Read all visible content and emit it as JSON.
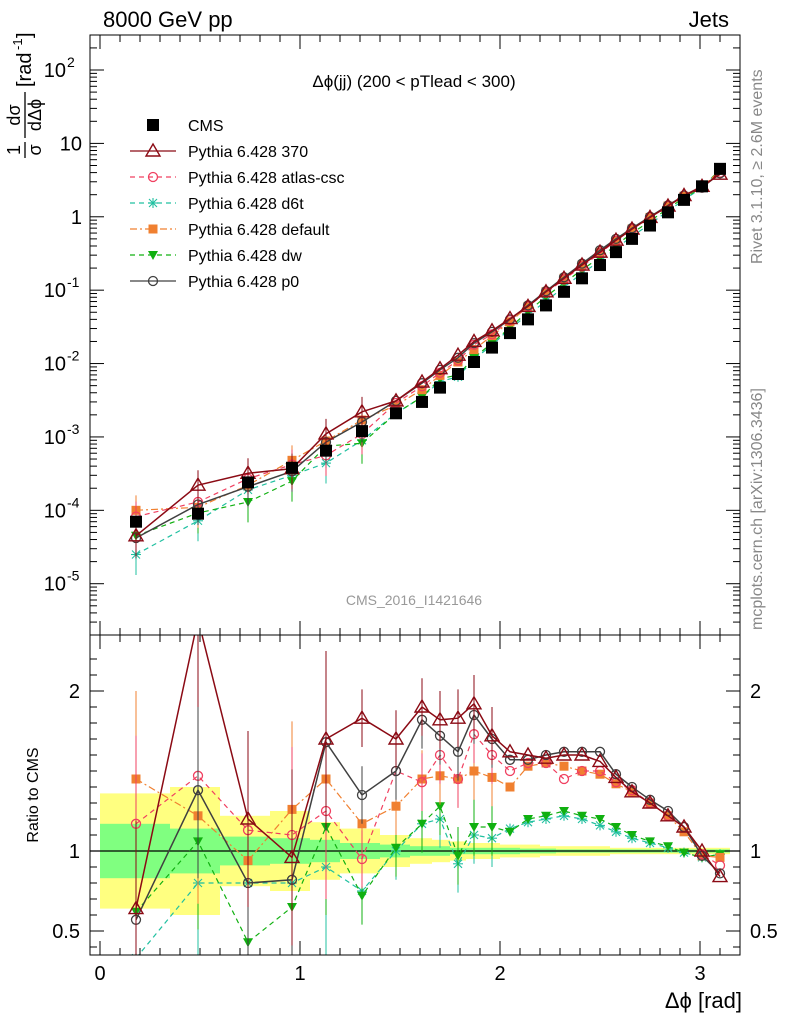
{
  "header": {
    "left": "8000 GeV pp",
    "right": "Jets"
  },
  "side_labels": {
    "top": "Rivet 3.1.10, ≥ 2.6M events",
    "bottom": "mcplots.cern.ch [arXiv:1306.3436]"
  },
  "watermark": "CMS_2016_I1421646",
  "colors": {
    "CMS": "#000000",
    "p370": "#8b0a14",
    "atlas": "#f04060",
    "d6t": "#20c0a0",
    "default": "#f08030",
    "dw": "#10b010",
    "p0": "#404040",
    "band_syst": "#ffff80",
    "band_stat": "#80ff80"
  },
  "chart_data": [
    {
      "type": "line",
      "title": "Δϕ(jj) (200 < pTlead <  300)",
      "ylabel": "1/σ dσ/dΔϕ [rad⁻¹]",
      "ylabel_parts": {
        "frac_num": "1",
        "frac_den": "σ",
        "num": "dσ",
        "den": "dΔϕ",
        "unit": "[rad",
        "unit_exp": "-1",
        "unit_close": "]"
      },
      "yscale": "log",
      "ylim": [
        2e-06,
        300
      ],
      "xlim": [
        -0.05,
        3.2
      ],
      "y_ticks": [
        {
          "v": 1e-05,
          "base": "10",
          "exp": "-5"
        },
        {
          "v": 0.0001,
          "base": "10",
          "exp": "-4"
        },
        {
          "v": 0.001,
          "base": "10",
          "exp": "-3"
        },
        {
          "v": 0.01,
          "base": "10",
          "exp": "-2"
        },
        {
          "v": 0.1,
          "base": "10",
          "exp": "-1"
        },
        {
          "v": 1,
          "base": "1",
          "exp": ""
        },
        {
          "v": 10,
          "base": "10",
          "exp": ""
        },
        {
          "v": 100,
          "base": "10",
          "exp": "2"
        }
      ],
      "x": [
        0.18,
        0.49,
        0.74,
        0.96,
        1.13,
        1.31,
        1.48,
        1.61,
        1.7,
        1.79,
        1.87,
        1.96,
        2.05,
        2.14,
        2.23,
        2.32,
        2.41,
        2.5,
        2.58,
        2.66,
        2.75,
        2.84,
        2.92,
        3.01,
        3.1
      ],
      "series": [
        {
          "key": "CMS",
          "name": "CMS",
          "style": "dot",
          "values": [
            7e-05,
            9e-05,
            0.00024,
            0.00038,
            0.00065,
            0.0012,
            0.0021,
            0.003,
            0.0047,
            0.0072,
            0.0105,
            0.0165,
            0.026,
            0.04,
            0.062,
            0.095,
            0.145,
            0.22,
            0.33,
            0.5,
            0.76,
            1.15,
            1.7,
            2.6,
            4.5
          ]
        },
        {
          "key": "p370",
          "name": "Pythia 6.428 370",
          "style": "solid",
          "values": [
            4.5e-05,
            0.00022,
            0.00032,
            0.00037,
            0.0011,
            0.0022,
            0.0031,
            0.0056,
            0.0085,
            0.013,
            0.02,
            0.028,
            0.041,
            0.06,
            0.095,
            0.145,
            0.22,
            0.33,
            0.48,
            0.68,
            0.98,
            1.4,
            1.95,
            2.6,
            3.8
          ]
        },
        {
          "key": "atlas",
          "name": "Pythia 6.428 atlas-csc",
          "style": "dashed",
          "values": [
            8.2e-05,
            0.00013,
            0.00027,
            0.00042,
            0.00056,
            0.0011,
            0.0029,
            0.0049,
            0.0075,
            0.011,
            0.018,
            0.025,
            0.039,
            0.06,
            0.092,
            0.14,
            0.21,
            0.32,
            0.47,
            0.68,
            0.98,
            1.4,
            1.95,
            2.5,
            4.0
          ]
        },
        {
          "key": "d6t",
          "name": "Pythia 6.428 d6t",
          "style": "dashed",
          "values": [
            2.5e-05,
            7.2e-05,
            0.00019,
            0.0003,
            0.00044,
            0.0009,
            0.0021,
            0.0035,
            0.0057,
            0.0066,
            0.0115,
            0.0178,
            0.03,
            0.046,
            0.071,
            0.11,
            0.17,
            0.25,
            0.37,
            0.54,
            0.8,
            1.2,
            1.7,
            2.5,
            4.4
          ]
        },
        {
          "key": "default",
          "name": "Pythia 6.428 default",
          "style": "dashdot",
          "values": [
            0.0001,
            0.00011,
            0.00022,
            0.00048,
            0.00088,
            0.0017,
            0.0027,
            0.0044,
            0.0069,
            0.0105,
            0.0155,
            0.024,
            0.037,
            0.06,
            0.095,
            0.145,
            0.22,
            0.33,
            0.47,
            0.68,
            0.98,
            1.4,
            1.9,
            2.5,
            4.3
          ]
        },
        {
          "key": "dw",
          "name": "Pythia 6.428 dw",
          "style": "dashed",
          "values": [
            4.5e-05,
            9.2e-05,
            0.00013,
            0.00025,
            0.00075,
            0.00082,
            0.0021,
            0.0035,
            0.0062,
            0.007,
            0.012,
            0.019,
            0.031,
            0.051,
            0.082,
            0.125,
            0.19,
            0.28,
            0.41,
            0.6,
            0.87,
            1.3,
            1.8,
            2.5,
            4.4
          ]
        },
        {
          "key": "p0",
          "name": "Pythia 6.428 p0",
          "style": "solid",
          "values": [
            4.2e-05,
            0.00012,
            0.00021,
            0.00034,
            0.00085,
            0.0016,
            0.0031,
            0.0054,
            0.0082,
            0.012,
            0.019,
            0.027,
            0.04,
            0.062,
            0.097,
            0.15,
            0.23,
            0.35,
            0.5,
            0.7,
            1.0,
            1.43,
            1.95,
            2.5,
            3.9
          ]
        }
      ]
    },
    {
      "type": "line",
      "ylabel": "Ratio to CMS",
      "ylim": [
        0.35,
        2.35
      ],
      "xlim": [
        -0.05,
        3.2
      ],
      "xlabel": "Δϕ [rad]",
      "y_ticks": [
        {
          "v": 0.5,
          "label": "0.5"
        },
        {
          "v": 1,
          "label": "1"
        },
        {
          "v": 2,
          "label": "2"
        }
      ],
      "x_ticks": [
        {
          "v": 0,
          "label": "0"
        },
        {
          "v": 1,
          "label": "1"
        },
        {
          "v": 2,
          "label": "2"
        },
        {
          "v": 3,
          "label": "3"
        }
      ],
      "x": [
        0.18,
        0.49,
        0.74,
        0.96,
        1.13,
        1.31,
        1.48,
        1.61,
        1.7,
        1.79,
        1.87,
        1.96,
        2.05,
        2.14,
        2.23,
        2.32,
        2.41,
        2.5,
        2.58,
        2.66,
        2.75,
        2.84,
        2.92,
        3.01,
        3.1
      ],
      "bands": {
        "edges": [
          0.0,
          0.35,
          0.6,
          0.85,
          1.05,
          1.2,
          1.4,
          1.55,
          1.66,
          1.75,
          1.83,
          1.92,
          2.0,
          2.1,
          2.2,
          2.28,
          2.37,
          2.46,
          2.55,
          2.63,
          2.71,
          2.8,
          2.88,
          2.97,
          3.06,
          3.15
        ],
        "syst": [
          0.36,
          0.4,
          0.22,
          0.25,
          0.18,
          0.14,
          0.1,
          0.08,
          0.07,
          0.06,
          0.05,
          0.05,
          0.04,
          0.04,
          0.03,
          0.03,
          0.03,
          0.03,
          0.02,
          0.02,
          0.02,
          0.02,
          0.02,
          0.02,
          0.02
        ],
        "stat": [
          0.17,
          0.14,
          0.09,
          0.08,
          0.07,
          0.05,
          0.04,
          0.03,
          0.03,
          0.02,
          0.02,
          0.02,
          0.02,
          0.015,
          0.015,
          0.01,
          0.01,
          0.01,
          0.01,
          0.01,
          0.01,
          0.01,
          0.01,
          0.01,
          0.01
        ]
      },
      "series": [
        {
          "key": "p370",
          "name": "Pythia 6.428 370",
          "values": [
            0.64,
            2.45,
            1.2,
            0.96,
            1.7,
            1.83,
            1.7,
            1.9,
            1.82,
            1.83,
            1.92,
            1.72,
            1.62,
            1.6,
            1.58,
            1.6,
            1.6,
            1.56,
            1.46,
            1.37,
            1.3,
            1.22,
            1.15,
            1.0,
            0.84
          ]
        },
        {
          "key": "atlas",
          "name": "Pythia 6.428 atlas-csc",
          "values": [
            1.17,
            1.47,
            1.13,
            1.1,
            1.25,
            0.95,
            1.5,
            1.43,
            1.6,
            1.45,
            1.73,
            1.6,
            1.5,
            1.55,
            1.55,
            1.45,
            1.5,
            1.5,
            1.43,
            1.38,
            1.3,
            1.22,
            1.15,
            0.98,
            0.91
          ]
        },
        {
          "key": "d6t",
          "name": "Pythia 6.428 d6t",
          "values": [
            0.33,
            0.8,
            0.8,
            0.8,
            0.9,
            0.75,
            1.0,
            1.17,
            1.2,
            0.92,
            1.1,
            1.08,
            1.14,
            1.18,
            1.2,
            1.22,
            1.2,
            1.16,
            1.12,
            1.08,
            1.05,
            1.02,
            0.99,
            0.96,
            0.98
          ]
        },
        {
          "key": "default",
          "name": "Pythia 6.428 default",
          "values": [
            1.45,
            1.22,
            0.94,
            1.26,
            1.45,
            1.17,
            1.28,
            1.45,
            1.47,
            1.45,
            1.5,
            1.46,
            1.4,
            1.53,
            1.55,
            1.53,
            1.5,
            1.48,
            1.42,
            1.37,
            1.3,
            1.22,
            1.12,
            0.97,
            0.96
          ]
        },
        {
          "key": "dw",
          "name": "Pythia 6.428 dw",
          "values": [
            0.62,
            1.06,
            0.43,
            0.65,
            1.15,
            0.72,
            1.02,
            1.17,
            1.28,
            0.97,
            1.15,
            1.15,
            1.12,
            1.2,
            1.22,
            1.25,
            1.22,
            1.2,
            1.15,
            1.1,
            1.06,
            1.03,
            0.99,
            0.96,
            0.98
          ]
        },
        {
          "key": "p0",
          "name": "Pythia 6.428 p0",
          "values": [
            0.57,
            1.38,
            0.8,
            0.82,
            1.68,
            1.35,
            1.5,
            1.82,
            1.72,
            1.62,
            1.85,
            1.7,
            1.57,
            1.57,
            1.6,
            1.62,
            1.62,
            1.62,
            1.48,
            1.4,
            1.32,
            1.25,
            1.15,
            0.97,
            0.86
          ]
        }
      ]
    }
  ]
}
